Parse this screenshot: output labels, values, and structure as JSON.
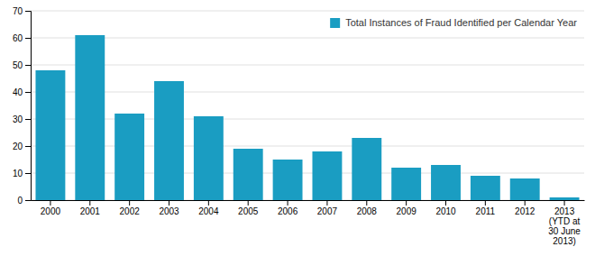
{
  "chart_data": {
    "type": "bar",
    "categories": [
      "2000",
      "2001",
      "2002",
      "2003",
      "2004",
      "2005",
      "2006",
      "2007",
      "2008",
      "2009",
      "2010",
      "2011",
      "2012",
      "2013\n(YTD at\n30 June\n2013)"
    ],
    "series": [
      {
        "name": "Total Instances of Fraud Identified per Calendar Year",
        "color": "#1a9dc2",
        "values": [
          48,
          61,
          32,
          44,
          31,
          19,
          15,
          18,
          23,
          12,
          13,
          9,
          8,
          1
        ]
      }
    ],
    "ylim": [
      0,
      70
    ],
    "yticks": [
      0,
      10,
      20,
      30,
      40,
      50,
      60,
      70
    ],
    "grid": true,
    "legend": "upper right"
  }
}
